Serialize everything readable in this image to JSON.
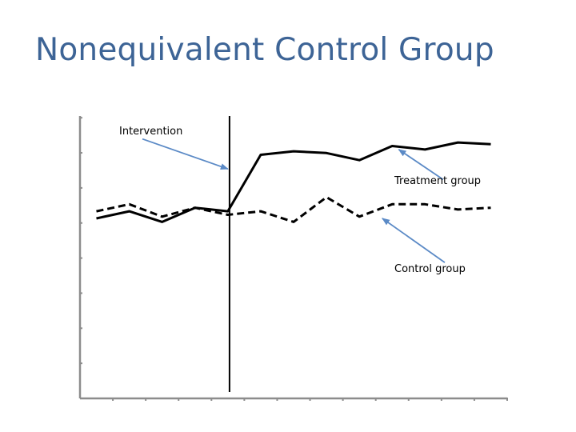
{
  "slide": {
    "title": "Nonequivalent Control Group",
    "title_color": "#3d6496"
  },
  "chart_data": {
    "type": "line",
    "title": "",
    "xlabel": "",
    "ylabel": "",
    "x": [
      1,
      2,
      3,
      4,
      5,
      6,
      7,
      8,
      9,
      10,
      11,
      12,
      13
    ],
    "xlim": [
      0.5,
      13.5
    ],
    "ylim": [
      0,
      8
    ],
    "grid": false,
    "tick_labels_shown": false,
    "x_tick_count": 13,
    "y_tick_count": 8,
    "series": [
      {
        "line_style": "solid",
        "color": "#000000",
        "values": [
          5.1,
          5.3,
          5.0,
          5.4,
          5.3,
          6.9,
          7.0,
          6.95,
          6.75,
          7.15,
          7.05,
          7.25,
          7.2
        ]
      },
      {
        "line_style": "dashed",
        "color": "#000000",
        "values": [
          5.3,
          5.5,
          5.15,
          5.4,
          5.2,
          5.3,
          5.0,
          5.7,
          5.15,
          5.5,
          5.5,
          5.35,
          5.4
        ]
      }
    ],
    "intervention": {
      "x": 5.05,
      "label": "Intervention"
    },
    "annotations": [
      {
        "key": "intervention",
        "text": "Intervention",
        "arrow_color": "#5b8ac6",
        "arrow_from": {
          "x": 2.4,
          "y": 7.35
        },
        "arrow_to": {
          "x": 5.0,
          "y": 6.5
        }
      },
      {
        "key": "treatment",
        "text": "Treatment group",
        "arrow_color": "#5b8ac6",
        "arrow_from": {
          "x": 11.55,
          "y": 6.2
        },
        "arrow_to": {
          "x": 10.2,
          "y": 7.05
        }
      },
      {
        "key": "control",
        "text": "Control group",
        "arrow_color": "#5b8ac6",
        "arrow_from": {
          "x": 11.6,
          "y": 3.85
        },
        "arrow_to": {
          "x": 9.7,
          "y": 5.1
        }
      }
    ]
  }
}
